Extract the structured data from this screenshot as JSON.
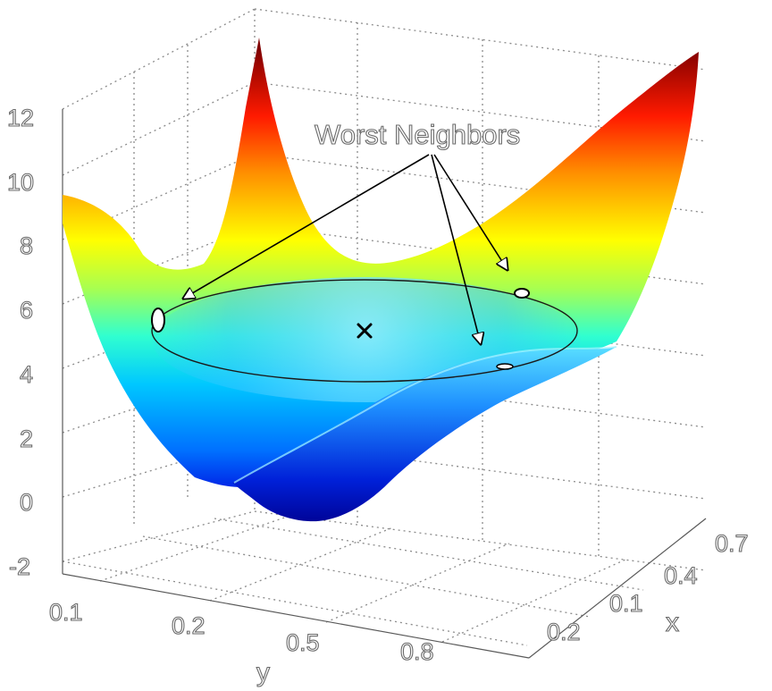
{
  "chart_data": {
    "type": "surface3d",
    "title": "",
    "xlabel": "x",
    "ylabel": "y",
    "zlabel": "",
    "z_ticks": [
      "12",
      "10",
      "8",
      "6",
      "4",
      "2",
      "0",
      "-2"
    ],
    "y_ticks": [
      "0.1",
      "0.2",
      "0.5",
      "0.8"
    ],
    "x_ticks": [
      "0.7",
      "0.4",
      "0.1",
      "0.2"
    ],
    "zlim": [
      -2,
      12
    ],
    "colormap": "jet",
    "colormap_stops": [
      "#00008f",
      "#0000ff",
      "#00ffff",
      "#ffff00",
      "#ff0000",
      "#800000"
    ],
    "annotation": {
      "text": "Worst Neighbors",
      "arrow_count": 3
    },
    "center_marker": "x",
    "ellipse": "neighborhood boundary"
  }
}
